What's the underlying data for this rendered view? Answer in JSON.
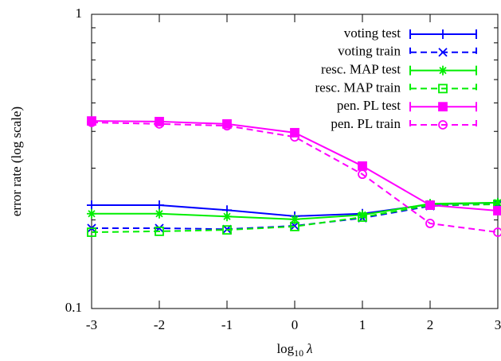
{
  "chart_data": {
    "type": "line",
    "xlabel": {
      "base": "log",
      "sub": "10",
      "var": "λ"
    },
    "ylabel": "error rate (log scale)",
    "x": [
      -3,
      -2,
      -1,
      0,
      1,
      2,
      3
    ],
    "xlim": [
      -3,
      3
    ],
    "xticks": [
      -3,
      -2,
      -1,
      0,
      1,
      2,
      3
    ],
    "ylim": [
      0.1,
      1
    ],
    "yticks": [
      0.1,
      1
    ],
    "yminorticks": [
      0.2,
      0.3,
      0.4,
      0.5,
      0.6,
      0.7,
      0.8,
      0.9
    ],
    "log_y": true,
    "legend": "upper right",
    "series": [
      {
        "name": "voting test",
        "color": "#0000ff",
        "dash": false,
        "marker": "plus",
        "values": [
          0.2245,
          0.2245,
          0.216,
          0.206,
          0.21,
          0.226,
          0.229
        ]
      },
      {
        "name": "voting train",
        "color": "#0000ff",
        "dash": true,
        "marker": "cross",
        "values": [
          0.1875,
          0.1875,
          0.186,
          0.191,
          0.203,
          0.223,
          0.227
        ]
      },
      {
        "name": "resc. MAP test",
        "color": "#00ee00",
        "dash": false,
        "marker": "star",
        "values": [
          0.21,
          0.21,
          0.2055,
          0.201,
          0.208,
          0.227,
          0.229
        ]
      },
      {
        "name": "resc. MAP train",
        "color": "#00ee00",
        "dash": true,
        "marker": "square",
        "values": [
          0.1817,
          0.183,
          0.185,
          0.19,
          0.2045,
          0.2245,
          0.226
        ]
      },
      {
        "name": "pen. PL test",
        "color": "#ff00ff",
        "dash": false,
        "marker": "filled-square",
        "values": [
          0.434,
          0.432,
          0.424,
          0.396,
          0.305,
          0.2245,
          0.215
        ]
      },
      {
        "name": "pen. PL train",
        "color": "#ff00ff",
        "dash": true,
        "marker": "circle",
        "values": [
          0.429,
          0.424,
          0.418,
          0.383,
          0.286,
          0.1946,
          0.1817
        ]
      }
    ]
  }
}
